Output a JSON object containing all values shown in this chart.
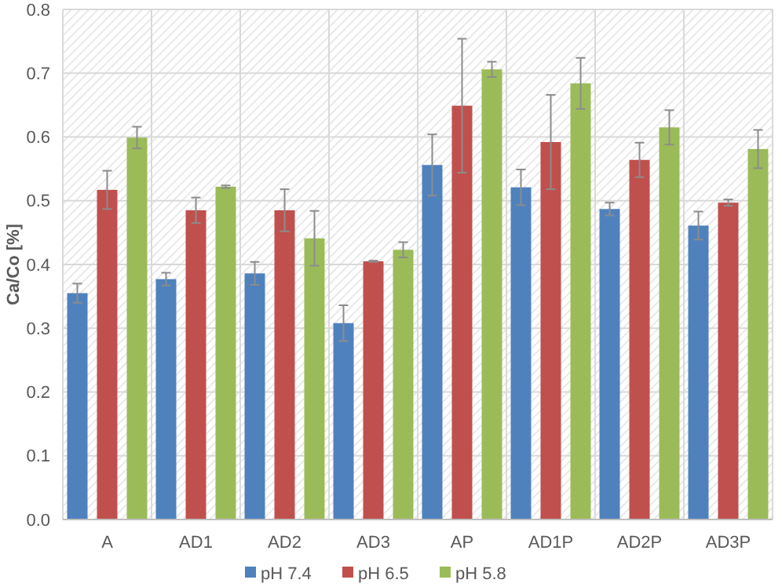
{
  "chart_data": {
    "type": "bar",
    "ylabel": "Ca/Co [%]",
    "categories": [
      "A",
      "AD1",
      "AD2",
      "AD3",
      "AP",
      "AD1P",
      "AD2P",
      "AD3P"
    ],
    "series": [
      {
        "name": "pH 7.4",
        "color": "#4f81bd",
        "values": [
          0.355,
          0.377,
          0.386,
          0.308,
          0.556,
          0.521,
          0.487,
          0.461
        ],
        "errors": [
          0.015,
          0.01,
          0.018,
          0.028,
          0.048,
          0.028,
          0.01,
          0.022
        ]
      },
      {
        "name": "pH 6.5",
        "color": "#c0504d",
        "values": [
          0.517,
          0.485,
          0.485,
          0.405,
          0.649,
          0.592,
          0.564,
          0.497
        ],
        "errors": [
          0.03,
          0.02,
          0.033,
          0.001,
          0.105,
          0.074,
          0.027,
          0.005
        ]
      },
      {
        "name": "pH 5.8",
        "color": "#9bbb59",
        "values": [
          0.599,
          0.522,
          0.441,
          0.423,
          0.706,
          0.684,
          0.615,
          0.581
        ],
        "errors": [
          0.017,
          0.002,
          0.043,
          0.012,
          0.012,
          0.04,
          0.027,
          0.03
        ]
      }
    ],
    "ylim": [
      0,
      0.8
    ],
    "yticks": [
      {
        "value": 0,
        "label": "0.0"
      },
      {
        "value": 0.1,
        "label": "0.1"
      },
      {
        "value": 0.2,
        "label": "0.2"
      },
      {
        "value": 0.3,
        "label": "0.3"
      },
      {
        "value": 0.4,
        "label": "0.4"
      },
      {
        "value": 0.5,
        "label": "0.5"
      },
      {
        "value": 0.6,
        "label": "0.6"
      },
      {
        "value": 0.7,
        "label": "0.7"
      },
      {
        "value": 0.8,
        "label": "0.8"
      }
    ],
    "grid": true,
    "legend": "bottom"
  }
}
